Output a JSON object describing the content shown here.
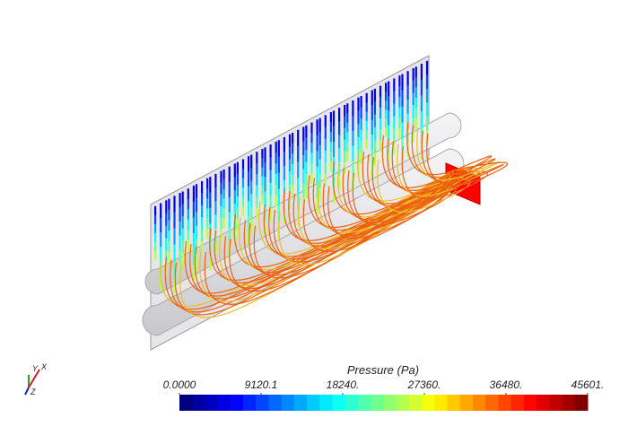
{
  "legend": {
    "title": "Pressure (Pa)",
    "range": [
      0,
      45601
    ],
    "ticks": [
      {
        "value": 0,
        "label": "0.0000"
      },
      9120.1,
      {
        "value": 18240,
        "label": "18240."
      },
      {
        "value": 27360,
        "label": "27360."
      },
      {
        "value": 36480,
        "label": "36480."
      },
      {
        "value": 45601,
        "label": "45601."
      }
    ]
  },
  "axes_triad": {
    "y": "Y",
    "x": "X",
    "z": "Z"
  }
}
